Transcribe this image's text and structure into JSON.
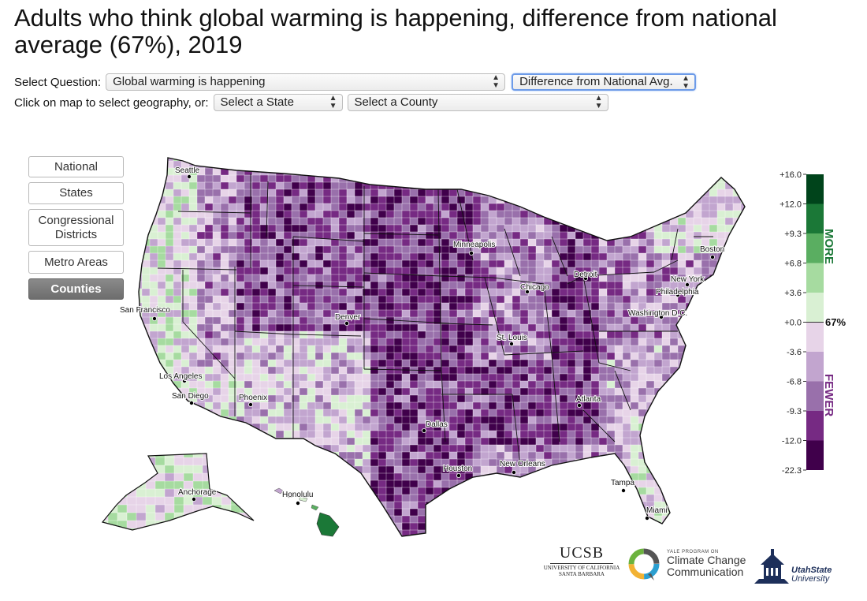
{
  "title": "Adults who think global warming is happening, difference from national average (67%), 2019",
  "controls": {
    "question_label": "Select Question:",
    "question_value": "Global warming is happening",
    "mode_value": "Difference from National Avg.",
    "geo_label": "Click on map to select geography, or:",
    "state_value": "Select a State",
    "county_value": "Select a County"
  },
  "geography_buttons": [
    {
      "label": "National",
      "active": false
    },
    {
      "label": "States",
      "active": false
    },
    {
      "label": "Congressional Districts",
      "active": false
    },
    {
      "label": "Metro Areas",
      "active": false
    },
    {
      "label": "Counties",
      "active": true
    }
  ],
  "legend": {
    "ticks": [
      "+16.0",
      "+12.0",
      "+9.3",
      "+6.8",
      "+3.6",
      "+0.0",
      "-3.6",
      "-6.8",
      "-9.3",
      "-12.0",
      "-22.3"
    ],
    "colors": [
      "#00441b",
      "#1b7837",
      "#5aae61",
      "#a6dba0",
      "#d9f0d3",
      "#e7d4e8",
      "#c2a5cf",
      "#9970ab",
      "#762a83",
      "#40004b"
    ],
    "more_label": "MORE",
    "fewer_label": "FEWER",
    "national_marker": "67%",
    "more_color": "#1b7837",
    "fewer_color": "#762a83"
  },
  "cities": [
    {
      "name": "Seattle"
    },
    {
      "name": "San Francisco"
    },
    {
      "name": "Los Angeles"
    },
    {
      "name": "San Diego"
    },
    {
      "name": "Phoenix"
    },
    {
      "name": "Denver"
    },
    {
      "name": "Dallas"
    },
    {
      "name": "Houston"
    },
    {
      "name": "New Orleans"
    },
    {
      "name": "St. Louis"
    },
    {
      "name": "Minneapolis"
    },
    {
      "name": "Chicago"
    },
    {
      "name": "Detroit"
    },
    {
      "name": "Atlanta"
    },
    {
      "name": "Tampa"
    },
    {
      "name": "Miami"
    },
    {
      "name": "Washington D.C."
    },
    {
      "name": "Philadelphia"
    },
    {
      "name": "New York"
    },
    {
      "name": "Boston"
    },
    {
      "name": "Anchorage"
    },
    {
      "name": "Honolulu"
    }
  ],
  "logos": {
    "ucsb_title": "UCSB",
    "ucsb_sub1": "UNIVERSITY OF CALIFORNIA",
    "ucsb_sub2": "SANTA BARBARA",
    "yale_small": "YALE PROGRAM ON",
    "yale_line1": "Climate Change",
    "yale_line2": "Communication",
    "usu_line1": "UtahState",
    "usu_line2": "University"
  },
  "icons": [
    "select-arrows-icon",
    "city-dot-icon",
    "ucsb-logo",
    "yale-ring-logo",
    "usu-building-logo"
  ]
}
